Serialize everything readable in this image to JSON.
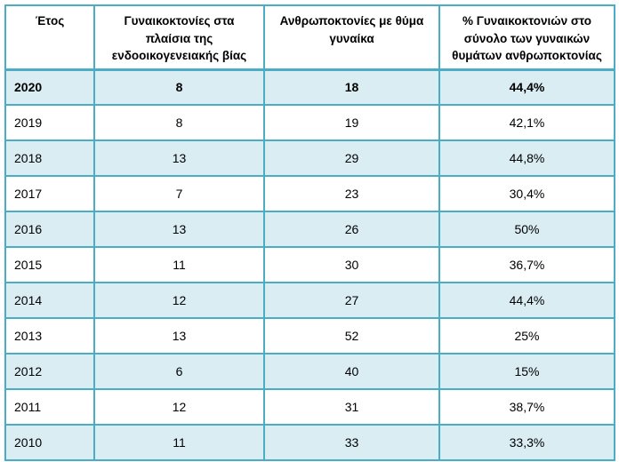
{
  "chart_data": {
    "type": "table",
    "columns": [
      "Έτος",
      "Γυναικοκτονίες στα πλαίσια της ενδοοικογενειακής βίας",
      "Ανθρωποκτονίες με θύμα γυναίκα",
      "% Γυναικοκτονιών στο σύνολο των γυναικών θυμάτων ανθρωποκτονίας"
    ],
    "rows": [
      [
        "2020",
        "8",
        "18",
        "44,4%"
      ],
      [
        "2019",
        "8",
        "19",
        "42,1%"
      ],
      [
        "2018",
        "13",
        "29",
        "44,8%"
      ],
      [
        "2017",
        "7",
        "23",
        "30,4%"
      ],
      [
        "2016",
        "13",
        "26",
        "50%"
      ],
      [
        "2015",
        "11",
        "30",
        "36,7%"
      ],
      [
        "2014",
        "12",
        "27",
        "44,4%"
      ],
      [
        "2013",
        "13",
        "52",
        "25%"
      ],
      [
        "2012",
        "6",
        "40",
        "15%"
      ],
      [
        "2011",
        "12",
        "31",
        "38,7%"
      ],
      [
        "2010",
        "11",
        "33",
        "33,3%"
      ]
    ],
    "highlighted_row": "2020",
    "layout": {
      "header_align": "center",
      "year_column_align": "left",
      "value_columns_align": "center",
      "row_striping": "odd-rows-filled"
    }
  },
  "colors": {
    "border": "#4BACC6",
    "row_fill": "#D9EDF3",
    "header_bg": "#FFFFFF",
    "text": "#000000"
  }
}
